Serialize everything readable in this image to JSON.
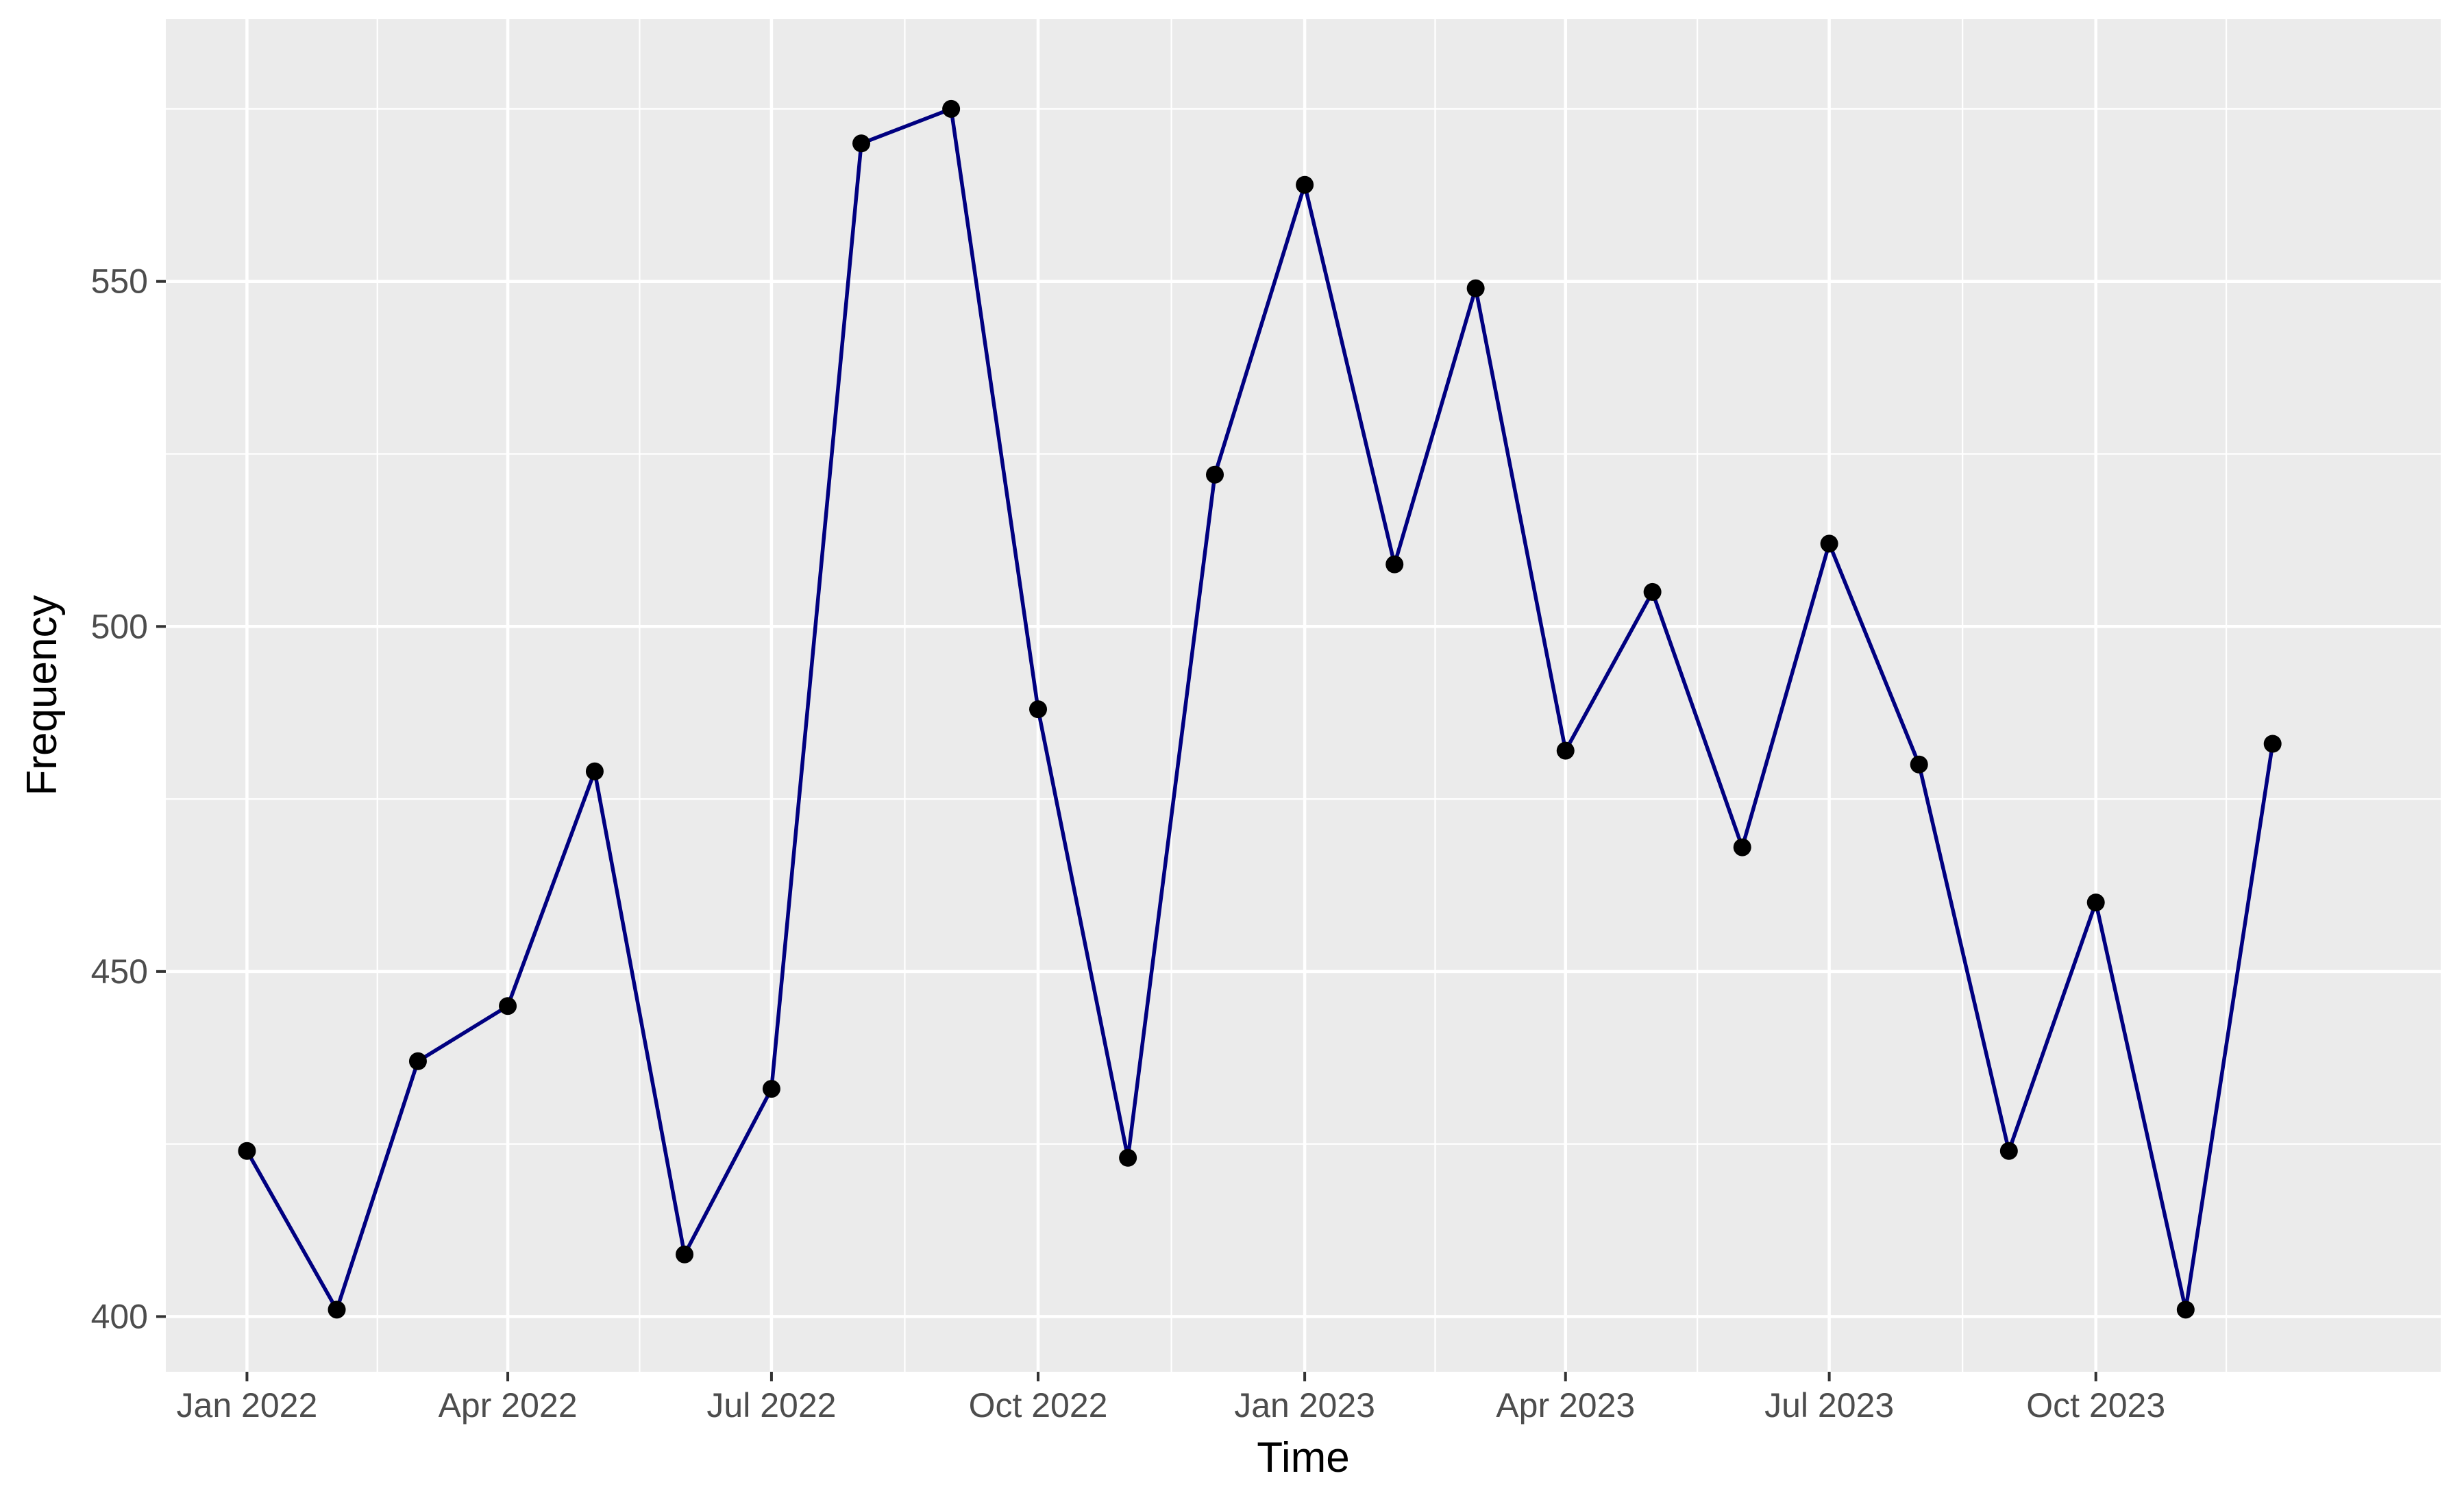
{
  "chart_data": {
    "type": "line",
    "title": "",
    "xlabel": "Time",
    "ylabel": "Frequency",
    "x": [
      "2022-01",
      "2022-02",
      "2022-03",
      "2022-04",
      "2022-05",
      "2022-06",
      "2022-07",
      "2022-08",
      "2022-09",
      "2022-10",
      "2022-11",
      "2022-12",
      "2023-01",
      "2023-02",
      "2023-03",
      "2023-04",
      "2023-05",
      "2023-06",
      "2023-07",
      "2023-08",
      "2023-09",
      "2023-10",
      "2023-11",
      "2023-12"
    ],
    "series": [
      {
        "values": [
          424,
          401,
          437,
          445,
          479,
          409,
          433,
          570,
          575,
          488,
          423,
          522,
          564,
          509,
          549,
          482,
          505,
          468,
          512,
          480,
          424,
          460,
          401,
          483
        ]
      }
    ],
    "x_ticks": [
      {
        "x": "2022-01",
        "label": "Jan 2022"
      },
      {
        "x": "2022-04",
        "label": "Apr 2022"
      },
      {
        "x": "2022-07",
        "label": "Jul 2022"
      },
      {
        "x": "2022-10",
        "label": "Oct 2022"
      },
      {
        "x": "2023-01",
        "label": "Jan 2023"
      },
      {
        "x": "2023-04",
        "label": "Apr 2023"
      },
      {
        "x": "2023-07",
        "label": "Jul 2023"
      },
      {
        "x": "2023-10",
        "label": "Oct 2023"
      }
    ],
    "y_ticks": [
      400,
      450,
      500,
      550
    ],
    "y_minor_ticks": [
      425,
      475,
      525,
      575
    ],
    "ylim": [
      392,
      588
    ],
    "xlim": [
      "2021-12-04",
      "2024-01-28"
    ],
    "grid": true,
    "legend": "none",
    "colors": {
      "panel_background": "#ebebeb",
      "grid": "#ffffff",
      "line": "#000080",
      "points": "#000000"
    }
  }
}
